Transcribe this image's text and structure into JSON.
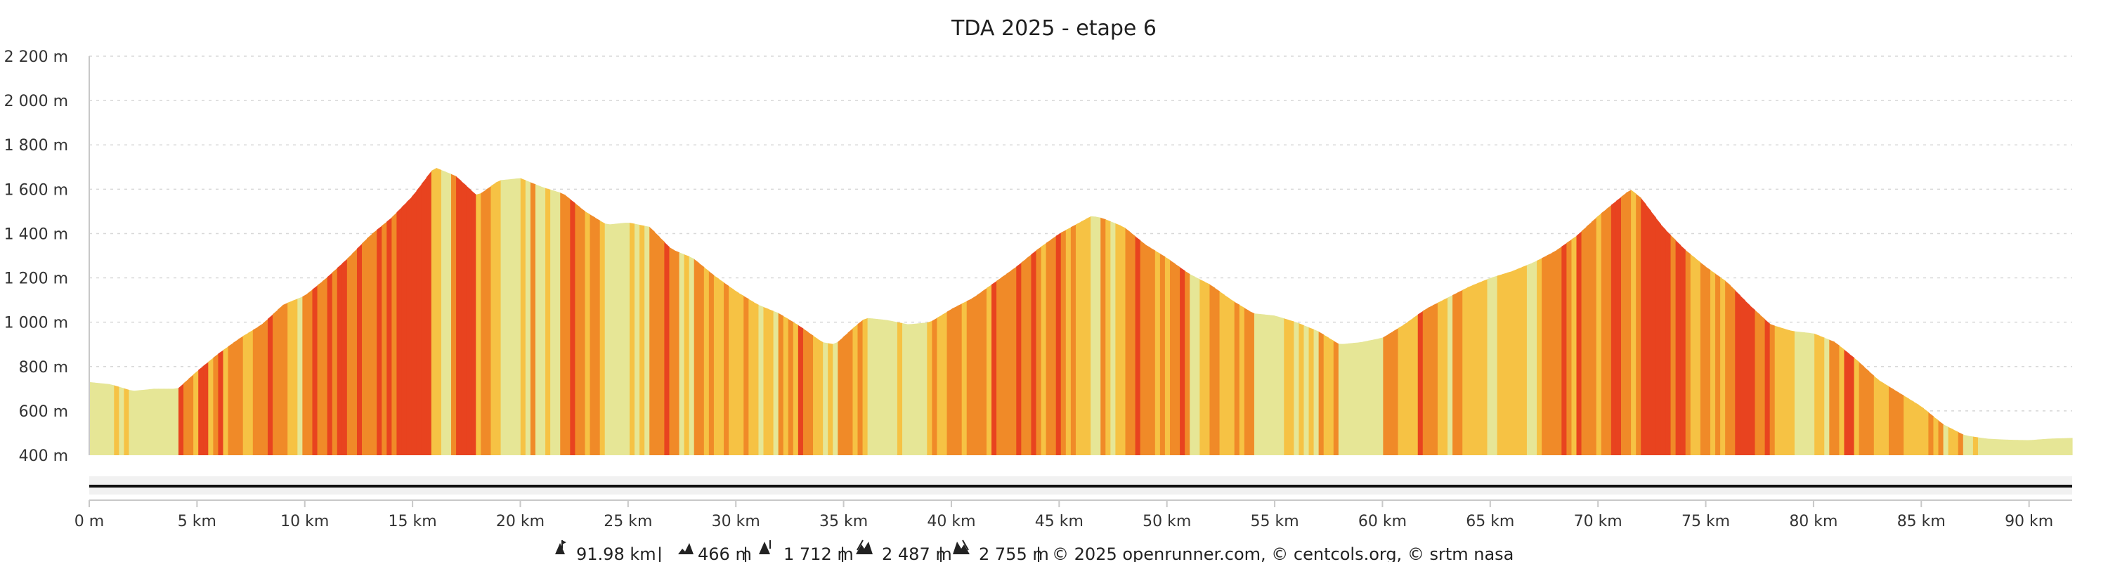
{
  "chart_data": {
    "type": "area",
    "title": "TDA 2025 - etape 6",
    "xlabel": "",
    "ylabel": "",
    "x_unit": "km",
    "y_unit": "m",
    "xlim": [
      0,
      92
    ],
    "ylim": [
      400,
      2200
    ],
    "y_ticks": [
      {
        "value": 400,
        "label": "400 m"
      },
      {
        "value": 600,
        "label": "600 m"
      },
      {
        "value": 800,
        "label": "800 m"
      },
      {
        "value": 1000,
        "label": "1 000 m"
      },
      {
        "value": 1200,
        "label": "1 200 m"
      },
      {
        "value": 1400,
        "label": "1 400 m"
      },
      {
        "value": 1600,
        "label": "1 600 m"
      },
      {
        "value": 1800,
        "label": "1 800 m"
      },
      {
        "value": 2000,
        "label": "2 000 m"
      },
      {
        "value": 2200,
        "label": "2 200 m"
      }
    ],
    "x_ticks": [
      {
        "value": 0,
        "label": "0 m"
      },
      {
        "value": 5,
        "label": "5 km"
      },
      {
        "value": 10,
        "label": "10 km"
      },
      {
        "value": 15,
        "label": "15 km"
      },
      {
        "value": 20,
        "label": "20 km"
      },
      {
        "value": 25,
        "label": "25 km"
      },
      {
        "value": 30,
        "label": "30 km"
      },
      {
        "value": 35,
        "label": "35 km"
      },
      {
        "value": 40,
        "label": "40 km"
      },
      {
        "value": 45,
        "label": "45 km"
      },
      {
        "value": 50,
        "label": "50 km"
      },
      {
        "value": 55,
        "label": "55 km"
      },
      {
        "value": 60,
        "label": "60 km"
      },
      {
        "value": 65,
        "label": "65 km"
      },
      {
        "value": 70,
        "label": "70 km"
      },
      {
        "value": 75,
        "label": "75 km"
      },
      {
        "value": 80,
        "label": "80 km"
      },
      {
        "value": 85,
        "label": "85 km"
      },
      {
        "value": 90,
        "label": "90 km"
      }
    ],
    "grid": true,
    "gradient_colors": {
      "flat": "#e6e696",
      "gentle": "#f6c244",
      "moderate": "#f08a28",
      "steep": "#e8431f"
    },
    "profile": [
      [
        0,
        730
      ],
      [
        1,
        720
      ],
      [
        2,
        690
      ],
      [
        3,
        700
      ],
      [
        4.1,
        700
      ],
      [
        5,
        780
      ],
      [
        6,
        860
      ],
      [
        7,
        930
      ],
      [
        8,
        990
      ],
      [
        9,
        1080
      ],
      [
        10,
        1120
      ],
      [
        11,
        1200
      ],
      [
        12,
        1290
      ],
      [
        13,
        1390
      ],
      [
        14,
        1470
      ],
      [
        15,
        1570
      ],
      [
        16,
        1700
      ],
      [
        17,
        1660
      ],
      [
        18,
        1570
      ],
      [
        19,
        1640
      ],
      [
        20,
        1650
      ],
      [
        21,
        1610
      ],
      [
        22,
        1580
      ],
      [
        23,
        1500
      ],
      [
        24,
        1440
      ],
      [
        25,
        1450
      ],
      [
        26,
        1430
      ],
      [
        27,
        1330
      ],
      [
        28,
        1290
      ],
      [
        29,
        1210
      ],
      [
        30,
        1140
      ],
      [
        31,
        1080
      ],
      [
        32,
        1040
      ],
      [
        33,
        980
      ],
      [
        34,
        910
      ],
      [
        34.6,
        900
      ],
      [
        35.5,
        980
      ],
      [
        36,
        1020
      ],
      [
        37,
        1010
      ],
      [
        38,
        990
      ],
      [
        39,
        1000
      ],
      [
        40,
        1060
      ],
      [
        41,
        1110
      ],
      [
        42,
        1180
      ],
      [
        43,
        1250
      ],
      [
        44,
        1330
      ],
      [
        45,
        1400
      ],
      [
        46.5,
        1480
      ],
      [
        47,
        1470
      ],
      [
        48,
        1430
      ],
      [
        49,
        1350
      ],
      [
        50,
        1290
      ],
      [
        51,
        1220
      ],
      [
        52,
        1170
      ],
      [
        53,
        1100
      ],
      [
        54,
        1040
      ],
      [
        55,
        1030
      ],
      [
        56,
        1000
      ],
      [
        57,
        960
      ],
      [
        58,
        900
      ],
      [
        59,
        910
      ],
      [
        60,
        930
      ],
      [
        61,
        990
      ],
      [
        62,
        1060
      ],
      [
        63,
        1110
      ],
      [
        64,
        1160
      ],
      [
        65,
        1200
      ],
      [
        66,
        1230
      ],
      [
        67,
        1270
      ],
      [
        68,
        1320
      ],
      [
        69,
        1390
      ],
      [
        70,
        1480
      ],
      [
        71.5,
        1600
      ],
      [
        72,
        1560
      ],
      [
        73,
        1430
      ],
      [
        74,
        1330
      ],
      [
        75,
        1250
      ],
      [
        76,
        1180
      ],
      [
        77,
        1080
      ],
      [
        78,
        990
      ],
      [
        79,
        960
      ],
      [
        80,
        950
      ],
      [
        81,
        910
      ],
      [
        82,
        830
      ],
      [
        83,
        740
      ],
      [
        84,
        680
      ],
      [
        85,
        620
      ],
      [
        86,
        540
      ],
      [
        87,
        490
      ],
      [
        88,
        475
      ],
      [
        89,
        470
      ],
      [
        90,
        468
      ],
      [
        91,
        475
      ],
      [
        92,
        478
      ]
    ],
    "stats": {
      "distance": "91.98 km",
      "min_elevation": "466 m",
      "max_elevation": "1 712 m",
      "ascent": "2 487 m",
      "descent": "2 755 m"
    },
    "credits": "© 2025 openrunner.com, © centcols.org, © srtm nasa",
    "separator": " | "
  }
}
